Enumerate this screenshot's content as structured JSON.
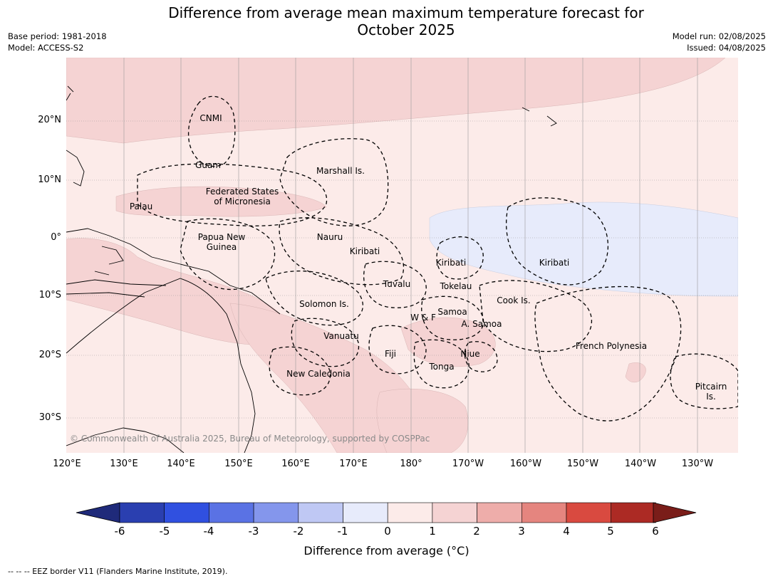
{
  "title": {
    "line1": "Difference from average mean maximum temperature forecast for",
    "line2": "October 2025"
  },
  "meta": {
    "base_period": "Base period: 1981-2018",
    "model": "Model: ACCESS-S2",
    "model_run": "Model run: 02/08/2025",
    "issued": "Issued: 04/08/2025"
  },
  "map": {
    "lat_labels": [
      "20°N",
      "10°N",
      "0°",
      "10°S",
      "20°S",
      "30°S"
    ],
    "lon_labels": [
      "120°E",
      "130°E",
      "140°E",
      "150°E",
      "160°E",
      "170°E",
      "180°",
      "170°W",
      "160°W",
      "150°W",
      "140°W",
      "130°W"
    ],
    "regions": [
      {
        "line1": "CNMI",
        "line2": ""
      },
      {
        "line1": "Guam",
        "line2": ""
      },
      {
        "line1": "Marshall Is.",
        "line2": ""
      },
      {
        "line1": "Federated States",
        "line2": "of Micronesia"
      },
      {
        "line1": "Palau",
        "line2": ""
      },
      {
        "line1": "Papua New",
        "line2": "Guinea"
      },
      {
        "line1": "Nauru",
        "line2": ""
      },
      {
        "line1": "Kiribati",
        "line2": ""
      },
      {
        "line1": "Kiribati",
        "line2": ""
      },
      {
        "line1": "Kiribati",
        "line2": ""
      },
      {
        "line1": "Tuvalu",
        "line2": ""
      },
      {
        "line1": "Tokelau",
        "line2": ""
      },
      {
        "line1": "Cook Is.",
        "line2": ""
      },
      {
        "line1": "Solomon Is.",
        "line2": ""
      },
      {
        "line1": "W & F",
        "line2": ""
      },
      {
        "line1": "Samoa",
        "line2": ""
      },
      {
        "line1": "A. Samoa",
        "line2": ""
      },
      {
        "line1": "Vanuatu",
        "line2": ""
      },
      {
        "line1": "French Polynesia",
        "line2": ""
      },
      {
        "line1": "Fiji",
        "line2": ""
      },
      {
        "line1": "Niue",
        "line2": ""
      },
      {
        "line1": "Tonga",
        "line2": ""
      },
      {
        "line1": "New Caledonia",
        "line2": ""
      },
      {
        "line1": "Pitcairn",
        "line2": "Is."
      }
    ],
    "copyright": "© Commonwealth of Australia 2025, Bureau of Meteorology, supported by COSPPac"
  },
  "colorbar": {
    "ticks": [
      "-6",
      "-5",
      "-4",
      "-3",
      "-2",
      "-1",
      "0",
      "1",
      "2",
      "3",
      "4",
      "5",
      "6"
    ],
    "colors": [
      "#1f2a7a",
      "#2a3fb0",
      "#3050e0",
      "#5a72e4",
      "#8496ec",
      "#bfc8f4",
      "#e7ebfb",
      "#fcebe9",
      "#f5d3d3",
      "#eeadaa",
      "#e5857f",
      "#d94a40",
      "#ac2a24",
      "#7a1d19"
    ],
    "label": "Difference from average (°C)"
  },
  "footnote": "--  --  -- EEZ border V11 (Flanders Marine Institute, 2019)."
}
